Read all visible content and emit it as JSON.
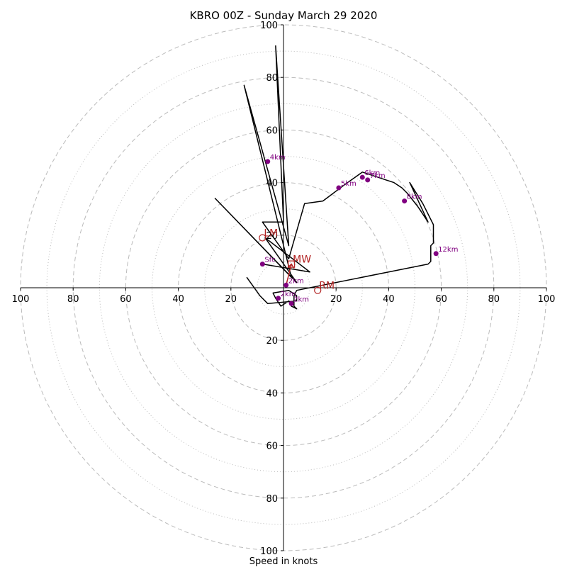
{
  "chart_data": {
    "type": "hodograph",
    "title": "KBRO 00Z - Sunday March 29 2020",
    "xlabel": "Speed in knots",
    "range": [
      -100,
      100
    ],
    "rings": [
      20,
      40,
      60,
      80,
      100
    ],
    "minor_rings": [
      10,
      30,
      50,
      70,
      90
    ],
    "x_ticks": [
      {
        "v": -100,
        "label": "100"
      },
      {
        "v": -80,
        "label": "80"
      },
      {
        "v": -60,
        "label": "60"
      },
      {
        "v": -40,
        "label": "40"
      },
      {
        "v": -20,
        "label": "20"
      },
      {
        "v": 20,
        "label": "20"
      },
      {
        "v": 40,
        "label": "40"
      },
      {
        "v": 60,
        "label": "60"
      },
      {
        "v": 80,
        "label": "80"
      },
      {
        "v": 100,
        "label": "100"
      }
    ],
    "y_ticks": [
      {
        "v": 100,
        "label": "100"
      },
      {
        "v": 80,
        "label": "80"
      },
      {
        "v": 60,
        "label": "60"
      },
      {
        "v": 40,
        "label": "40"
      },
      {
        "v": 20,
        "label": "20"
      },
      {
        "v": -20,
        "label": "20"
      },
      {
        "v": -40,
        "label": "40"
      },
      {
        "v": -60,
        "label": "60"
      },
      {
        "v": -80,
        "label": "80"
      },
      {
        "v": -100,
        "label": "100"
      }
    ],
    "trace": [
      [
        -8,
        9
      ],
      [
        10,
        6
      ],
      [
        -7,
        19
      ],
      [
        5,
        2
      ],
      [
        -26,
        34
      ],
      [
        3,
        4
      ],
      [
        -15,
        77
      ],
      [
        2,
        16
      ],
      [
        -3,
        92
      ],
      [
        0,
        25
      ],
      [
        -8,
        25
      ],
      [
        2,
        11
      ],
      [
        8,
        32
      ],
      [
        15,
        33
      ],
      [
        23,
        39
      ],
      [
        30,
        44
      ],
      [
        36,
        42
      ],
      [
        39,
        41
      ],
      [
        42,
        40
      ],
      [
        45,
        38
      ],
      [
        47,
        36
      ],
      [
        51,
        31
      ],
      [
        55,
        25
      ],
      [
        48,
        40
      ],
      [
        53,
        32
      ],
      [
        57,
        24
      ],
      [
        57,
        17
      ],
      [
        56,
        16
      ],
      [
        56,
        13
      ],
      [
        56,
        10
      ],
      [
        55,
        9
      ],
      [
        5,
        -1
      ],
      [
        4,
        -3
      ],
      [
        4,
        -7
      ],
      [
        5,
        -8
      ],
      [
        3,
        -7
      ],
      [
        3,
        -6
      ],
      [
        2,
        -5
      ],
      [
        -1,
        -7
      ],
      [
        -3,
        -4
      ],
      [
        -4,
        -2
      ],
      [
        2,
        -1
      ],
      [
        5,
        -3
      ],
      [
        5,
        -5
      ],
      [
        -6,
        -6
      ],
      [
        -9,
        -3
      ],
      [
        -14,
        4
      ]
    ],
    "heights": [
      {
        "label": "Sfc",
        "u": -8,
        "v": 9
      },
      {
        "label": "2km",
        "u": 1,
        "v": 1
      },
      {
        "label": "2km",
        "u": -2,
        "v": -4
      },
      {
        "label": "2km",
        "u": 3,
        "v": -6
      },
      {
        "label": "4km",
        "u": -6,
        "v": 48
      },
      {
        "label": "5km",
        "u": 21,
        "v": 38
      },
      {
        "label": "6km",
        "u": 30,
        "v": 42
      },
      {
        "label": "7km",
        "u": 32,
        "v": 41
      },
      {
        "label": "8km",
        "u": 46,
        "v": 33
      },
      {
        "label": "12km",
        "u": 58,
        "v": 13
      }
    ],
    "motion_markers": [
      {
        "label": "LM",
        "u": -8,
        "v": 19,
        "shape": "circle"
      },
      {
        "label": "MW",
        "u": 3,
        "v": 9,
        "shape": "square"
      },
      {
        "label": "RM",
        "u": 13,
        "v": -1,
        "shape": "circle"
      }
    ],
    "shear_vector": {
      "from": [
        1,
        1
      ],
      "to": [
        3,
        9
      ]
    },
    "colors": {
      "ring": "#bbbbbb",
      "trace": "#000000",
      "height_marker": "#800080",
      "motion_marker": "#b22222"
    }
  }
}
